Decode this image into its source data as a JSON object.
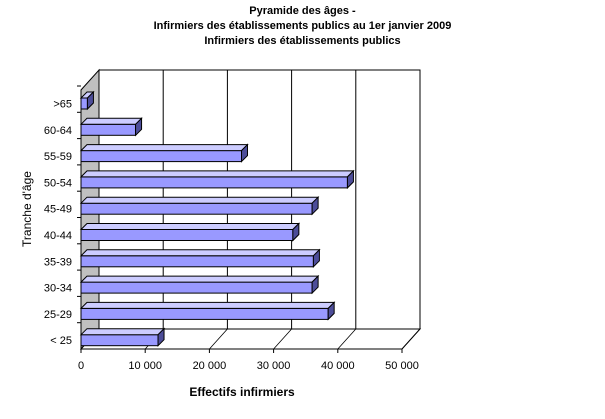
{
  "chart_data": {
    "type": "bar",
    "orientation": "horizontal",
    "style": "3d",
    "title_lines": [
      "Pyramide des âges -",
      "Infirmiers des établissements publics au 1er janvier 2009",
      "Infirmiers des établissements publics"
    ],
    "xlabel": "Effectifs infirmiers",
    "ylabel": "Tranche d'âge",
    "categories": [
      "< 25",
      "25-29",
      "30-34",
      "35-39",
      "40-44",
      "45-49",
      "50-54",
      "55-59",
      "60-64",
      ">65"
    ],
    "values": [
      12000,
      38500,
      36000,
      36200,
      33000,
      36000,
      41500,
      25000,
      8500,
      1000
    ],
    "xlim": [
      0,
      50000
    ],
    "xticks": [
      0,
      10000,
      20000,
      30000,
      40000,
      50000
    ],
    "xtick_labels": [
      "0",
      "10 000",
      "20 000",
      "30 000",
      "40 000",
      "50 000"
    ],
    "grid": "vertical",
    "legend": "none",
    "bar_color": "#9999ff"
  }
}
